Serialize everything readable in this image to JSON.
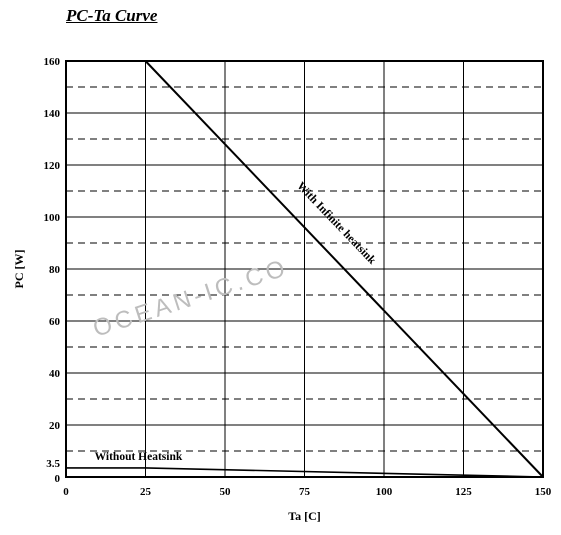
{
  "chart_data": {
    "type": "line",
    "title": "PC-Ta Curve",
    "xlabel": "Ta [C]",
    "ylabel": "PC [W]",
    "xlim": [
      0,
      150
    ],
    "ylim": [
      0,
      160
    ],
    "x_ticks": [
      0,
      25,
      50,
      75,
      100,
      125,
      150
    ],
    "y_ticks": [
      0,
      3.5,
      20,
      40,
      60,
      80,
      100,
      120,
      140,
      160
    ],
    "grid": {
      "vertical": "solid",
      "horizontal_major": "solid",
      "horizontal_minor": "dashed"
    },
    "series": [
      {
        "name": "With Infinite heatsink",
        "x": [
          25,
          150
        ],
        "y": [
          160,
          0
        ]
      },
      {
        "name": "Without Heatsink",
        "x": [
          0,
          25,
          150
        ],
        "y": [
          3.5,
          3.5,
          0
        ]
      }
    ],
    "watermark": "OCEAN-IC.CO"
  }
}
